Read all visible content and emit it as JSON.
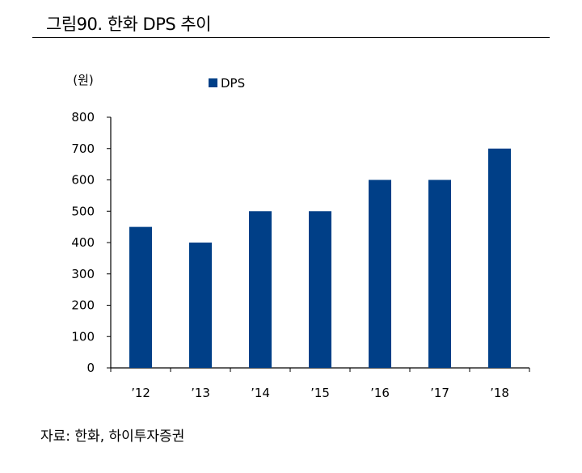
{
  "figure": {
    "title": "그림90. 한화 DPS 추이",
    "source": "자료: 한화, 하이투자증권"
  },
  "chart_data": {
    "type": "bar",
    "title": "",
    "ylabel": "(원)",
    "xlabel": "",
    "categories": [
      "’12",
      "’13",
      "’14",
      "’15",
      "’16",
      "’17",
      "’18"
    ],
    "series": [
      {
        "name": "DPS",
        "values": [
          450,
          400,
          500,
          500,
          600,
          600,
          700
        ],
        "color": "#003F87"
      }
    ],
    "ylim": [
      0,
      800
    ],
    "yticks": [
      0,
      100,
      200,
      300,
      400,
      500,
      600,
      700,
      800
    ],
    "grid": false,
    "legend": "top-center"
  }
}
